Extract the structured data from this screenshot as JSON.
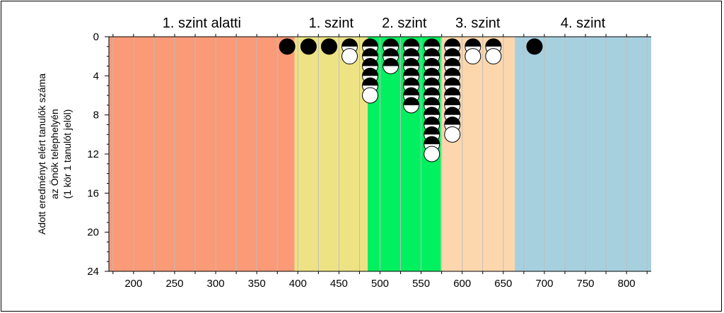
{
  "chart_data": {
    "type": "scatter",
    "ylabel_lines": [
      "Adott eredményt elért tanulók száma",
      "az Önök telephelyén",
      "(1 kör 1 tanulót jelöl)"
    ],
    "xlim": [
      170,
      830
    ],
    "ylim": [
      24,
      0
    ],
    "x_ticks": [
      200,
      250,
      300,
      350,
      400,
      450,
      500,
      550,
      600,
      650,
      700,
      750,
      800
    ],
    "y_ticks": [
      0,
      4,
      8,
      12,
      16,
      20,
      24
    ],
    "grid": "vertical",
    "levels": [
      {
        "name": "1. szint alatti",
        "from": 170,
        "to": 396,
        "color": "#FA9A77"
      },
      {
        "name": "1. szint",
        "from": 396,
        "to": 485,
        "color": "#EDE385"
      },
      {
        "name": "2. szint",
        "from": 485,
        "to": 574,
        "color": "#00F060"
      },
      {
        "name": "3. szint",
        "from": 574,
        "to": 664,
        "color": "#FCD7AE"
      },
      {
        "name": "4. szint",
        "from": 664,
        "to": 830,
        "color": "#A7D0DF"
      }
    ],
    "columns": [
      {
        "x": 387,
        "count": 1,
        "last_half": false
      },
      {
        "x": 413,
        "count": 1,
        "last_half": false
      },
      {
        "x": 438,
        "count": 1,
        "last_half": false
      },
      {
        "x": 463,
        "count": 2,
        "last_half": true
      },
      {
        "x": 488,
        "count": 6,
        "last_half": true
      },
      {
        "x": 513,
        "count": 3,
        "last_half": false
      },
      {
        "x": 538,
        "count": 7,
        "last_half": false
      },
      {
        "x": 563,
        "count": 12,
        "last_half": true
      },
      {
        "x": 588,
        "count": 10,
        "last_half": true
      },
      {
        "x": 613,
        "count": 2,
        "last_half": true
      },
      {
        "x": 638,
        "count": 2,
        "last_half": true
      },
      {
        "x": 688,
        "count": 1,
        "last_half": false
      }
    ]
  }
}
